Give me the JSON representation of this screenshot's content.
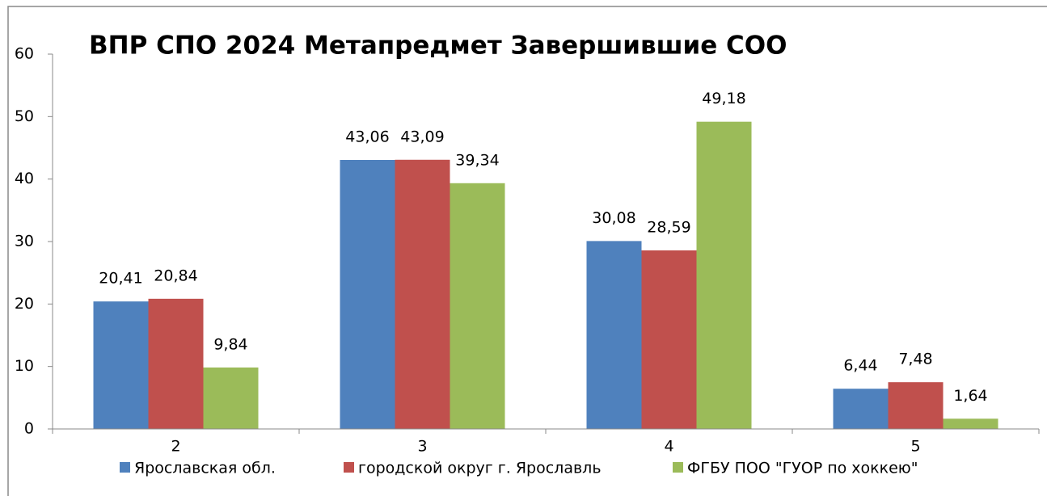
{
  "chart_data": {
    "type": "bar",
    "title": "ВПР СПО 2024 Метапредмет Завершившие  СОО",
    "categories": [
      "2",
      "3",
      "4",
      "5"
    ],
    "series": [
      {
        "name": "Ярославская обл.",
        "color": "#4f81bd",
        "values": [
          20.41,
          43.06,
          30.08,
          6.44
        ],
        "value_labels": [
          "20,41",
          "43,06",
          "30,08",
          "6,44"
        ]
      },
      {
        "name": "городской округ г. Ярославль",
        "color": "#c0504d",
        "values": [
          20.84,
          43.09,
          28.59,
          7.48
        ],
        "value_labels": [
          "20,84",
          "43,09",
          "28,59",
          "7,48"
        ]
      },
      {
        "name": "ФГБУ ПОО \"ГУОР по хоккею\"",
        "color": "#9bbb59",
        "values": [
          9.84,
          39.34,
          49.18,
          1.64
        ],
        "value_labels": [
          "9,84",
          "39,34",
          "49,18",
          "1,64"
        ]
      }
    ],
    "ylim": [
      0,
      60
    ],
    "yticks": [
      0,
      10,
      20,
      30,
      40,
      50,
      60
    ],
    "legend": "bottom"
  }
}
